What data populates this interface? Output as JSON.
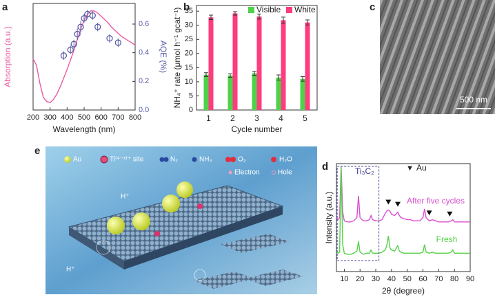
{
  "chart_data": [
    {
      "type": "line",
      "panel_label": "a",
      "x_label": "Wavelength (nm)",
      "y_label": "Absorption (a.u.)",
      "y2_label": "AQE (%)",
      "xlim": [
        200,
        800
      ],
      "xticks": [
        200,
        300,
        400,
        500,
        600,
        700,
        800
      ],
      "ylim": [
        0,
        1
      ],
      "y2lim": [
        0,
        0.744
      ],
      "y2ticks": [
        {
          "value": 0,
          "label": "0.0"
        },
        0.2,
        0.4,
        0.6
      ],
      "series": [
        {
          "color": "#ea5aa0",
          "x": [
            200,
            220,
            240,
            260,
            280,
            300,
            320,
            340,
            360,
            380,
            400,
            420,
            440,
            460,
            480,
            500,
            520,
            540,
            560,
            580,
            600,
            620,
            640,
            660,
            680,
            700,
            720,
            740,
            760,
            780,
            800
          ],
          "values": [
            0.48,
            0.42,
            0.25,
            0.12,
            0.08,
            0.07,
            0.1,
            0.15,
            0.22,
            0.3,
            0.38,
            0.47,
            0.56,
            0.66,
            0.76,
            0.84,
            0.9,
            0.93,
            0.93,
            0.91,
            0.88,
            0.85,
            0.82,
            0.78,
            0.75,
            0.72,
            0.69,
            0.67,
            0.65,
            0.63,
            0.61
          ]
        },
        {
          "color": "#5a5ea8",
          "axis": "y2",
          "marker": "circle",
          "x": [
            380,
            420,
            440,
            460,
            480,
            500,
            520,
            550,
            580,
            650,
            700
          ],
          "values": [
            0.38,
            0.42,
            0.46,
            0.53,
            0.58,
            0.64,
            0.67,
            0.66,
            0.58,
            0.5,
            0.47
          ],
          "errors": [
            0.03,
            0.03,
            0.03,
            0.04,
            0.04,
            0.03,
            0.03,
            0.03,
            0.03,
            0.03,
            0.03
          ]
        }
      ]
    },
    {
      "type": "bar",
      "panel_label": "b",
      "x_label": "Cycle number",
      "y_label": "NH₄⁺ rate (μmol h⁻¹ gcat⁻¹)",
      "categories": [
        "1",
        "2",
        "3",
        "4",
        "5"
      ],
      "ylim": [
        0,
        37
      ],
      "yticks": [
        0,
        5,
        10,
        15,
        20,
        25,
        30,
        35
      ],
      "legend": "top-right",
      "series": [
        {
          "name": "Visible",
          "color": "#4fd24a",
          "values": [
            12.5,
            12.2,
            13,
            11.5,
            11
          ],
          "errors": [
            0.7,
            0.6,
            0.7,
            0.9,
            0.8
          ]
        },
        {
          "name": "White",
          "color": "#ff3c80",
          "values": [
            32.8,
            34.2,
            33.1,
            31.8,
            31
          ],
          "errors": [
            0.8,
            0.6,
            0.9,
            1.1,
            0.9
          ]
        }
      ]
    },
    {
      "type": "line",
      "panel_label": "d",
      "x_label": "2θ (degree)",
      "y_label": "Intensity (a.u.)",
      "xlim": [
        5,
        90
      ],
      "xticks": [
        10,
        20,
        30,
        40,
        50,
        60,
        70,
        80,
        90
      ],
      "ylim": [
        0,
        1
      ],
      "x": [
        5,
        6,
        7,
        8,
        9,
        10,
        12,
        14,
        16,
        18,
        19,
        20,
        22,
        24,
        26,
        27,
        28,
        30,
        32,
        34,
        36,
        37,
        38,
        39,
        40,
        42,
        44,
        45,
        46,
        48,
        50,
        52,
        54,
        56,
        58,
        60,
        61,
        62,
        64,
        66,
        68,
        70,
        72,
        74,
        76,
        78,
        79,
        80,
        82,
        84,
        86,
        88,
        90
      ],
      "series": [
        {
          "name": "After five cycles",
          "color": "#d94fd0",
          "values": [
            0.5,
            0.48,
            0.5,
            0.98,
            0.55,
            0.47,
            0.46,
            0.46,
            0.47,
            0.5,
            0.7,
            0.5,
            0.47,
            0.47,
            0.48,
            0.52,
            0.48,
            0.47,
            0.47,
            0.48,
            0.54,
            0.56,
            0.57,
            0.56,
            0.53,
            0.52,
            0.55,
            0.52,
            0.5,
            0.49,
            0.48,
            0.48,
            0.47,
            0.47,
            0.47,
            0.5,
            0.58,
            0.5,
            0.47,
            0.48,
            0.47,
            0.46,
            0.46,
            0.46,
            0.46,
            0.47,
            0.48,
            0.46,
            0.46,
            0.46,
            0.46,
            0.46,
            0.46
          ]
        },
        {
          "name": "Fresh",
          "color": "#55d048",
          "values": [
            0.18,
            0.17,
            0.18,
            0.97,
            0.25,
            0.17,
            0.16,
            0.16,
            0.17,
            0.19,
            0.28,
            0.18,
            0.16,
            0.17,
            0.17,
            0.2,
            0.17,
            0.17,
            0.17,
            0.18,
            0.2,
            0.24,
            0.33,
            0.22,
            0.2,
            0.19,
            0.24,
            0.19,
            0.18,
            0.17,
            0.17,
            0.17,
            0.17,
            0.17,
            0.17,
            0.18,
            0.25,
            0.18,
            0.17,
            0.18,
            0.17,
            0.17,
            0.17,
            0.17,
            0.17,
            0.18,
            0.2,
            0.17,
            0.17,
            0.17,
            0.17,
            0.17,
            0.17
          ]
        }
      ],
      "phase_label": "Ti₃C₂",
      "phase_box": [
        5.5,
        32
      ],
      "peak_label": "Au",
      "peaks": [
        38,
        44,
        64,
        77
      ]
    }
  ],
  "panels": {
    "c": {
      "label": "c",
      "scale_bar": "500 nm"
    },
    "e": {
      "label": "e",
      "legend": [
        "Au",
        "Ti⁽⁴⁻ˣ⁾⁺ site",
        "N₂",
        "NH₃",
        "O₂",
        "H₂O",
        "Electron",
        "Hole"
      ],
      "proton": "H⁺"
    }
  }
}
